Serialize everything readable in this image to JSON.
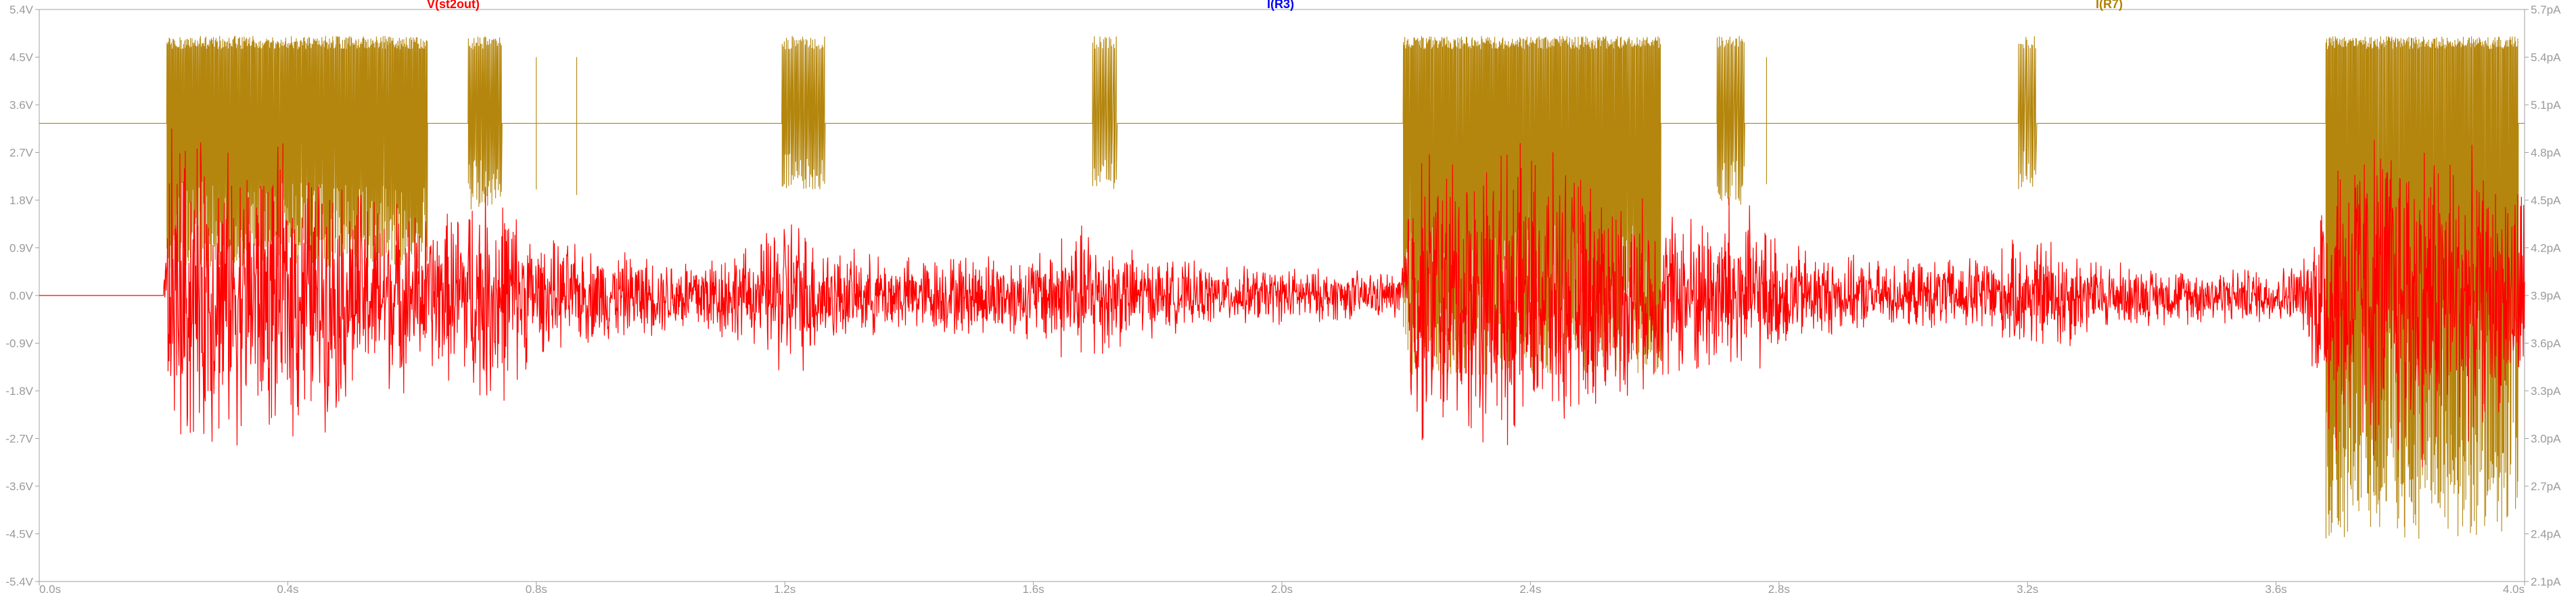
{
  "chart_data": {
    "type": "line",
    "title": "",
    "x_axis": {
      "range": [
        0.0,
        4.0
      ],
      "ticks": [
        0.0,
        0.4,
        0.8,
        1.2,
        1.6,
        2.0,
        2.4,
        2.8,
        3.2,
        3.6,
        4.0
      ],
      "tick_labels": [
        "0.0s",
        "0.4s",
        "0.8s",
        "1.2s",
        "1.6s",
        "2.0s",
        "2.4s",
        "2.8s",
        "3.2s",
        "3.6s",
        "4.0s"
      ]
    },
    "y_left": {
      "range": [
        -5.4,
        5.4
      ],
      "ticks": [
        -5.4,
        -4.5,
        -3.6,
        -2.7,
        -1.8,
        -0.9,
        0.0,
        0.9,
        1.8,
        2.7,
        3.6,
        4.5,
        5.4
      ],
      "tick_labels": [
        "-5.4V",
        "-4.5V",
        "-3.6V",
        "-2.7V",
        "-1.8V",
        "-0.9V",
        "0.0V",
        "0.9V",
        "1.8V",
        "2.7V",
        "3.6V",
        "4.5V",
        "5.4V"
      ]
    },
    "y_right": {
      "range": [
        2.1,
        5.7
      ],
      "ticks": [
        2.1,
        2.4,
        2.7,
        3.0,
        3.3,
        3.6,
        3.9,
        4.2,
        4.5,
        4.8,
        5.1,
        5.4,
        5.7
      ],
      "tick_labels": [
        "2.1pA",
        "2.4pA",
        "2.7pA",
        "3.0pA",
        "3.3pA",
        "3.6pA",
        "3.9pA",
        "4.2pA",
        "4.5pA",
        "4.8pA",
        "5.1pA",
        "5.4pA",
        "5.7pA"
      ]
    },
    "grid": false,
    "trace_labels": [
      {
        "name": "V(st2out)",
        "color": "#ff0000"
      },
      {
        "name": "I(R3)",
        "color": "#0000ff"
      },
      {
        "name": "I(R7)",
        "color": "#b08000"
      }
    ],
    "series": [
      {
        "name": "V(st2out)",
        "color": "#ff0000",
        "axis": "left",
        "baseline": 0.0,
        "start_time": 0.2,
        "envelope_x": [
          0.2,
          0.21,
          0.3,
          0.4,
          0.5,
          0.6,
          0.65,
          0.7,
          0.74,
          0.8,
          0.9,
          1.0,
          1.1,
          1.15,
          1.2,
          1.25,
          1.3,
          1.4,
          1.5,
          1.6,
          1.65,
          1.7,
          1.75,
          1.8,
          1.9,
          2.0,
          2.15,
          2.19,
          2.21,
          2.3,
          2.4,
          2.5,
          2.6,
          2.7,
          2.72,
          2.8,
          2.9,
          3.0,
          3.1,
          3.2,
          3.25,
          3.3,
          3.4,
          3.5,
          3.6,
          3.65,
          3.68,
          3.75,
          3.85,
          3.95,
          3.98
        ],
        "envelope_amp": [
          0.1,
          3.6,
          3.0,
          3.0,
          2.4,
          1.8,
          1.7,
          2.3,
          2.4,
          1.2,
          1.0,
          0.8,
          1.0,
          1.0,
          1.9,
          1.3,
          0.9,
          0.8,
          0.9,
          0.9,
          1.4,
          1.5,
          1.0,
          0.8,
          0.6,
          0.6,
          0.5,
          0.5,
          3.2,
          3.0,
          3.0,
          2.5,
          1.8,
          1.8,
          2.2,
          1.2,
          0.8,
          0.7,
          0.8,
          1.2,
          1.3,
          0.8,
          0.6,
          0.6,
          0.6,
          0.8,
          3.5,
          3.6,
          3.6,
          2.5,
          2.5
        ]
      },
      {
        "name": "I(R7)",
        "color": "#b08000",
        "axis": "left",
        "baseline": 3.25,
        "high_level": 4.9,
        "low_level": -4.5,
        "bursts": [
          {
            "start": 0.205,
            "end": 0.625,
            "density": 0.9,
            "low": 0.5
          },
          {
            "start": 0.69,
            "end": 0.745,
            "density": 0.7,
            "low": 1.6
          },
          {
            "start": 0.8,
            "end": 0.8,
            "density": 1.0,
            "low": 2.0
          },
          {
            "start": 0.865,
            "end": 0.865,
            "density": 1.0,
            "low": 1.9
          },
          {
            "start": 1.195,
            "end": 1.265,
            "density": 0.6,
            "low": 2.0
          },
          {
            "start": 1.695,
            "end": 1.735,
            "density": 0.5,
            "low": 2.0
          },
          {
            "start": 2.195,
            "end": 2.61,
            "density": 0.9,
            "low": -1.5
          },
          {
            "start": 2.7,
            "end": 2.745,
            "density": 0.6,
            "low": 1.7
          },
          {
            "start": 2.78,
            "end": 2.78,
            "density": 1.0,
            "low": 2.1
          },
          {
            "start": 3.185,
            "end": 3.215,
            "density": 0.5,
            "low": 2.0
          },
          {
            "start": 3.68,
            "end": 3.99,
            "density": 0.9,
            "low": -4.6
          }
        ]
      }
    ]
  }
}
